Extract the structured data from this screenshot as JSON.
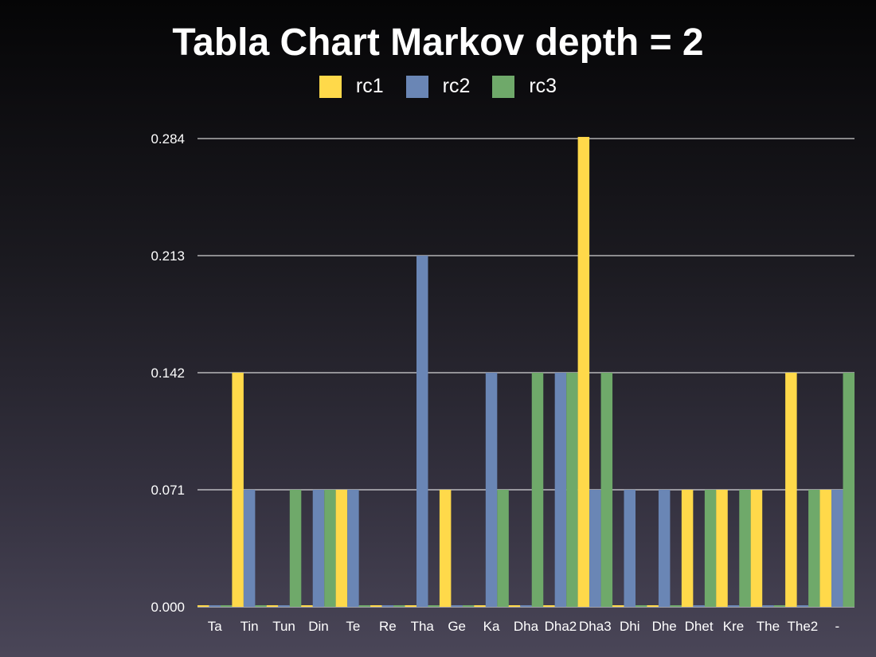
{
  "chart_data": {
    "type": "bar",
    "title": "Tabla Chart Markov depth = 2",
    "xlabel": "",
    "ylabel": "",
    "categories": [
      "Ta",
      "Tin",
      "Tun",
      "Din",
      "Te",
      "Re",
      "Tha",
      "Ge",
      "Ka",
      "Dha",
      "Dha2",
      "Dha3",
      "Dhi",
      "Dhe",
      "Dhet",
      "Kre",
      "The",
      "The2",
      "-"
    ],
    "series": [
      {
        "name": "rc1",
        "color": "#ffd94a",
        "values": [
          0,
          0.142,
          0,
          0,
          0.071,
          0,
          0,
          0.071,
          0,
          0,
          0,
          0.285,
          0,
          0,
          0.071,
          0.071,
          0.071,
          0.142,
          0.071
        ]
      },
      {
        "name": "rc2",
        "color": "#6a86b5",
        "values": [
          0,
          0.071,
          0,
          0.071,
          0.071,
          0,
          0.213,
          0,
          0.142,
          0,
          0.142,
          0.071,
          0.071,
          0.071,
          0,
          0,
          0,
          0,
          0.071
        ]
      },
      {
        "name": "rc3",
        "color": "#6fa96a",
        "values": [
          0,
          0,
          0.071,
          0.071,
          0,
          0,
          0,
          0,
          0.071,
          0.142,
          0.142,
          0.142,
          0,
          0,
          0.071,
          0.071,
          0,
          0.071,
          0.142
        ]
      }
    ],
    "yticks": [
      "0.000",
      "0.071",
      "0.142",
      "0.213",
      "0.284"
    ],
    "ylim": [
      0,
      0.284
    ],
    "grid": true,
    "legend_position": "top"
  }
}
